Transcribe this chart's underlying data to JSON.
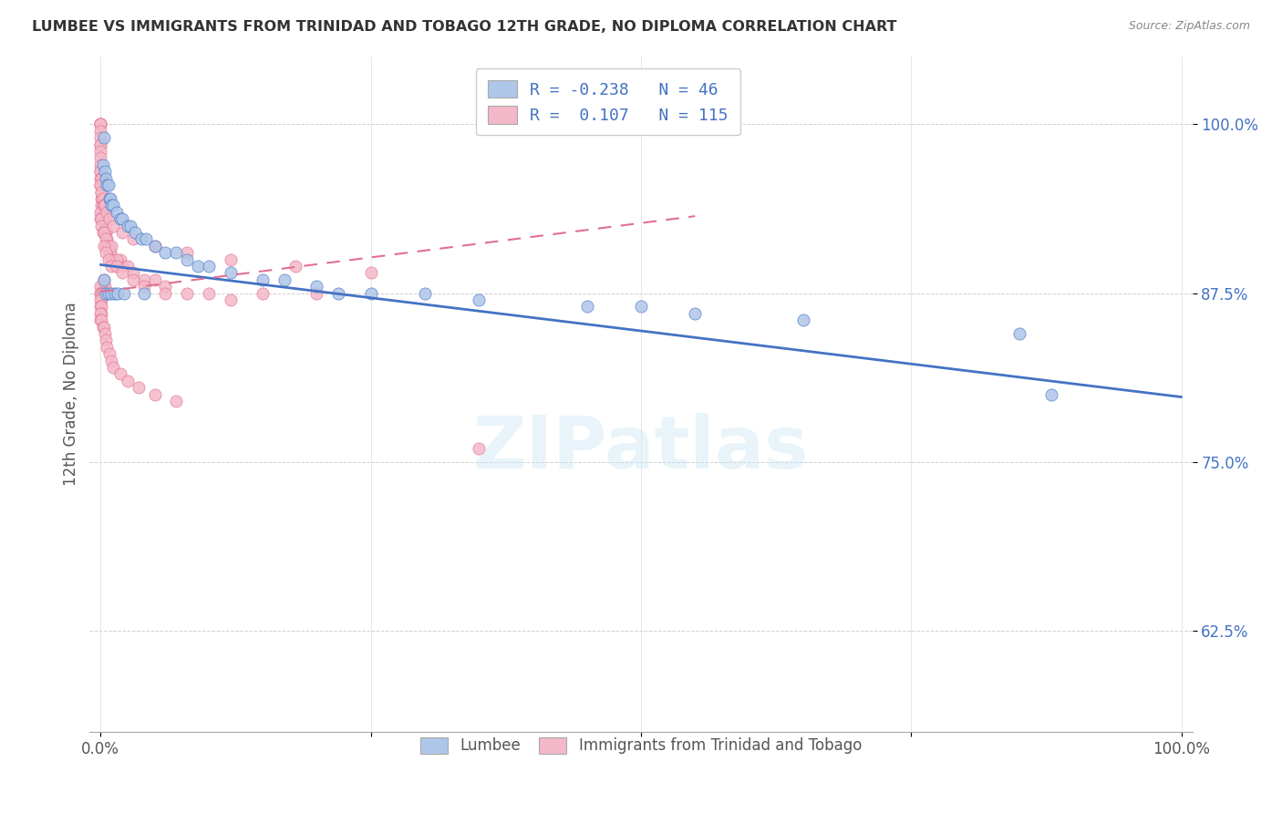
{
  "title": "LUMBEE VS IMMIGRANTS FROM TRINIDAD AND TOBAGO 12TH GRADE, NO DIPLOMA CORRELATION CHART",
  "source": "Source: ZipAtlas.com",
  "ylabel": "12th Grade, No Diploma",
  "xlim": [
    0.0,
    1.0
  ],
  "ylim": [
    0.55,
    1.05
  ],
  "yticks": [
    0.625,
    0.75,
    0.875,
    1.0
  ],
  "ytick_labels": [
    "62.5%",
    "75.0%",
    "87.5%",
    "100.0%"
  ],
  "xticks": [
    0.0,
    0.25,
    0.5,
    0.75,
    1.0
  ],
  "xtick_labels": [
    "0.0%",
    "",
    "",
    "",
    "100.0%"
  ],
  "legend_labels": [
    "Lumbee",
    "Immigrants from Trinidad and Tobago"
  ],
  "lumbee_R": -0.238,
  "lumbee_N": 46,
  "tt_R": 0.107,
  "tt_N": 115,
  "lumbee_color": "#aec6e8",
  "tt_color": "#f4b8c8",
  "lumbee_line_color": "#4472c4",
  "tt_line_color": "#e07090",
  "watermark": "ZIPatlas",
  "lumbee_points_x": [
    0.002,
    0.003,
    0.004,
    0.005,
    0.006,
    0.007,
    0.008,
    0.009,
    0.01,
    0.012,
    0.015,
    0.018,
    0.02,
    0.025,
    0.028,
    0.032,
    0.038,
    0.042,
    0.05,
    0.06,
    0.07,
    0.08,
    0.09,
    0.1,
    0.12,
    0.15,
    0.17,
    0.2,
    0.25,
    0.3,
    0.35,
    0.45,
    0.5,
    0.55,
    0.65,
    0.85,
    0.88,
    0.003,
    0.005,
    0.007,
    0.01,
    0.013,
    0.016,
    0.022,
    0.04,
    0.22
  ],
  "lumbee_points_y": [
    0.97,
    0.99,
    0.965,
    0.96,
    0.955,
    0.955,
    0.945,
    0.945,
    0.94,
    0.94,
    0.935,
    0.93,
    0.93,
    0.925,
    0.925,
    0.92,
    0.915,
    0.915,
    0.91,
    0.905,
    0.905,
    0.9,
    0.895,
    0.895,
    0.89,
    0.885,
    0.885,
    0.88,
    0.875,
    0.875,
    0.87,
    0.865,
    0.865,
    0.86,
    0.855,
    0.845,
    0.8,
    0.885,
    0.875,
    0.875,
    0.875,
    0.875,
    0.875,
    0.875,
    0.875,
    0.875
  ],
  "tt_points_x": [
    0.0,
    0.0,
    0.0,
    0.0,
    0.0,
    0.0,
    0.0,
    0.0,
    0.0,
    0.0,
    0.0,
    0.0,
    0.0,
    0.0,
    0.0,
    0.001,
    0.001,
    0.001,
    0.001,
    0.001,
    0.002,
    0.002,
    0.002,
    0.002,
    0.003,
    0.003,
    0.004,
    0.004,
    0.005,
    0.005,
    0.006,
    0.006,
    0.007,
    0.008,
    0.009,
    0.01,
    0.012,
    0.015,
    0.018,
    0.02,
    0.025,
    0.03,
    0.04,
    0.05,
    0.06,
    0.08,
    0.1,
    0.12,
    0.15,
    0.2,
    0.0,
    0.0,
    0.001,
    0.001,
    0.002,
    0.003,
    0.005,
    0.007,
    0.01,
    0.015,
    0.002,
    0.003,
    0.004,
    0.0,
    0.0,
    0.0,
    0.001,
    0.001,
    0.002,
    0.003,
    0.0,
    0.0,
    0.001,
    0.001,
    0.0,
    0.0,
    0.001,
    0.002,
    0.003,
    0.004,
    0.005,
    0.006,
    0.008,
    0.01,
    0.012,
    0.018,
    0.025,
    0.035,
    0.05,
    0.07,
    0.003,
    0.005,
    0.007,
    0.01,
    0.015,
    0.02,
    0.03,
    0.04,
    0.06,
    0.35,
    0.0,
    0.001,
    0.002,
    0.003,
    0.004,
    0.006,
    0.008,
    0.012,
    0.02,
    0.03,
    0.05,
    0.08,
    0.12,
    0.18,
    0.25
  ],
  "tt_points_y": [
    1.0,
    1.0,
    1.0,
    1.0,
    0.995,
    0.99,
    0.985,
    0.985,
    0.98,
    0.975,
    0.97,
    0.965,
    0.965,
    0.96,
    0.955,
    0.96,
    0.955,
    0.95,
    0.945,
    0.94,
    0.945,
    0.94,
    0.935,
    0.93,
    0.935,
    0.93,
    0.93,
    0.925,
    0.92,
    0.92,
    0.915,
    0.91,
    0.91,
    0.905,
    0.905,
    0.9,
    0.9,
    0.895,
    0.9,
    0.895,
    0.895,
    0.89,
    0.885,
    0.885,
    0.88,
    0.875,
    0.875,
    0.87,
    0.875,
    0.875,
    0.935,
    0.93,
    0.93,
    0.925,
    0.92,
    0.92,
    0.915,
    0.91,
    0.91,
    0.9,
    0.88,
    0.885,
    0.88,
    0.88,
    0.875,
    0.875,
    0.875,
    0.87,
    0.875,
    0.875,
    0.87,
    0.865,
    0.865,
    0.86,
    0.86,
    0.855,
    0.855,
    0.85,
    0.85,
    0.845,
    0.84,
    0.835,
    0.83,
    0.825,
    0.82,
    0.815,
    0.81,
    0.805,
    0.8,
    0.795,
    0.91,
    0.905,
    0.9,
    0.895,
    0.895,
    0.89,
    0.885,
    0.88,
    0.875,
    0.76,
    0.955,
    0.95,
    0.945,
    0.94,
    0.94,
    0.935,
    0.93,
    0.925,
    0.92,
    0.915,
    0.91,
    0.905,
    0.9,
    0.895,
    0.89
  ],
  "lumbee_line_x0": 0.0,
  "lumbee_line_y0": 0.896,
  "lumbee_line_x1": 1.0,
  "lumbee_line_y1": 0.798,
  "tt_line_x0": 0.0,
  "tt_line_y0": 0.876,
  "tt_line_x1": 0.55,
  "tt_line_y1": 0.932
}
